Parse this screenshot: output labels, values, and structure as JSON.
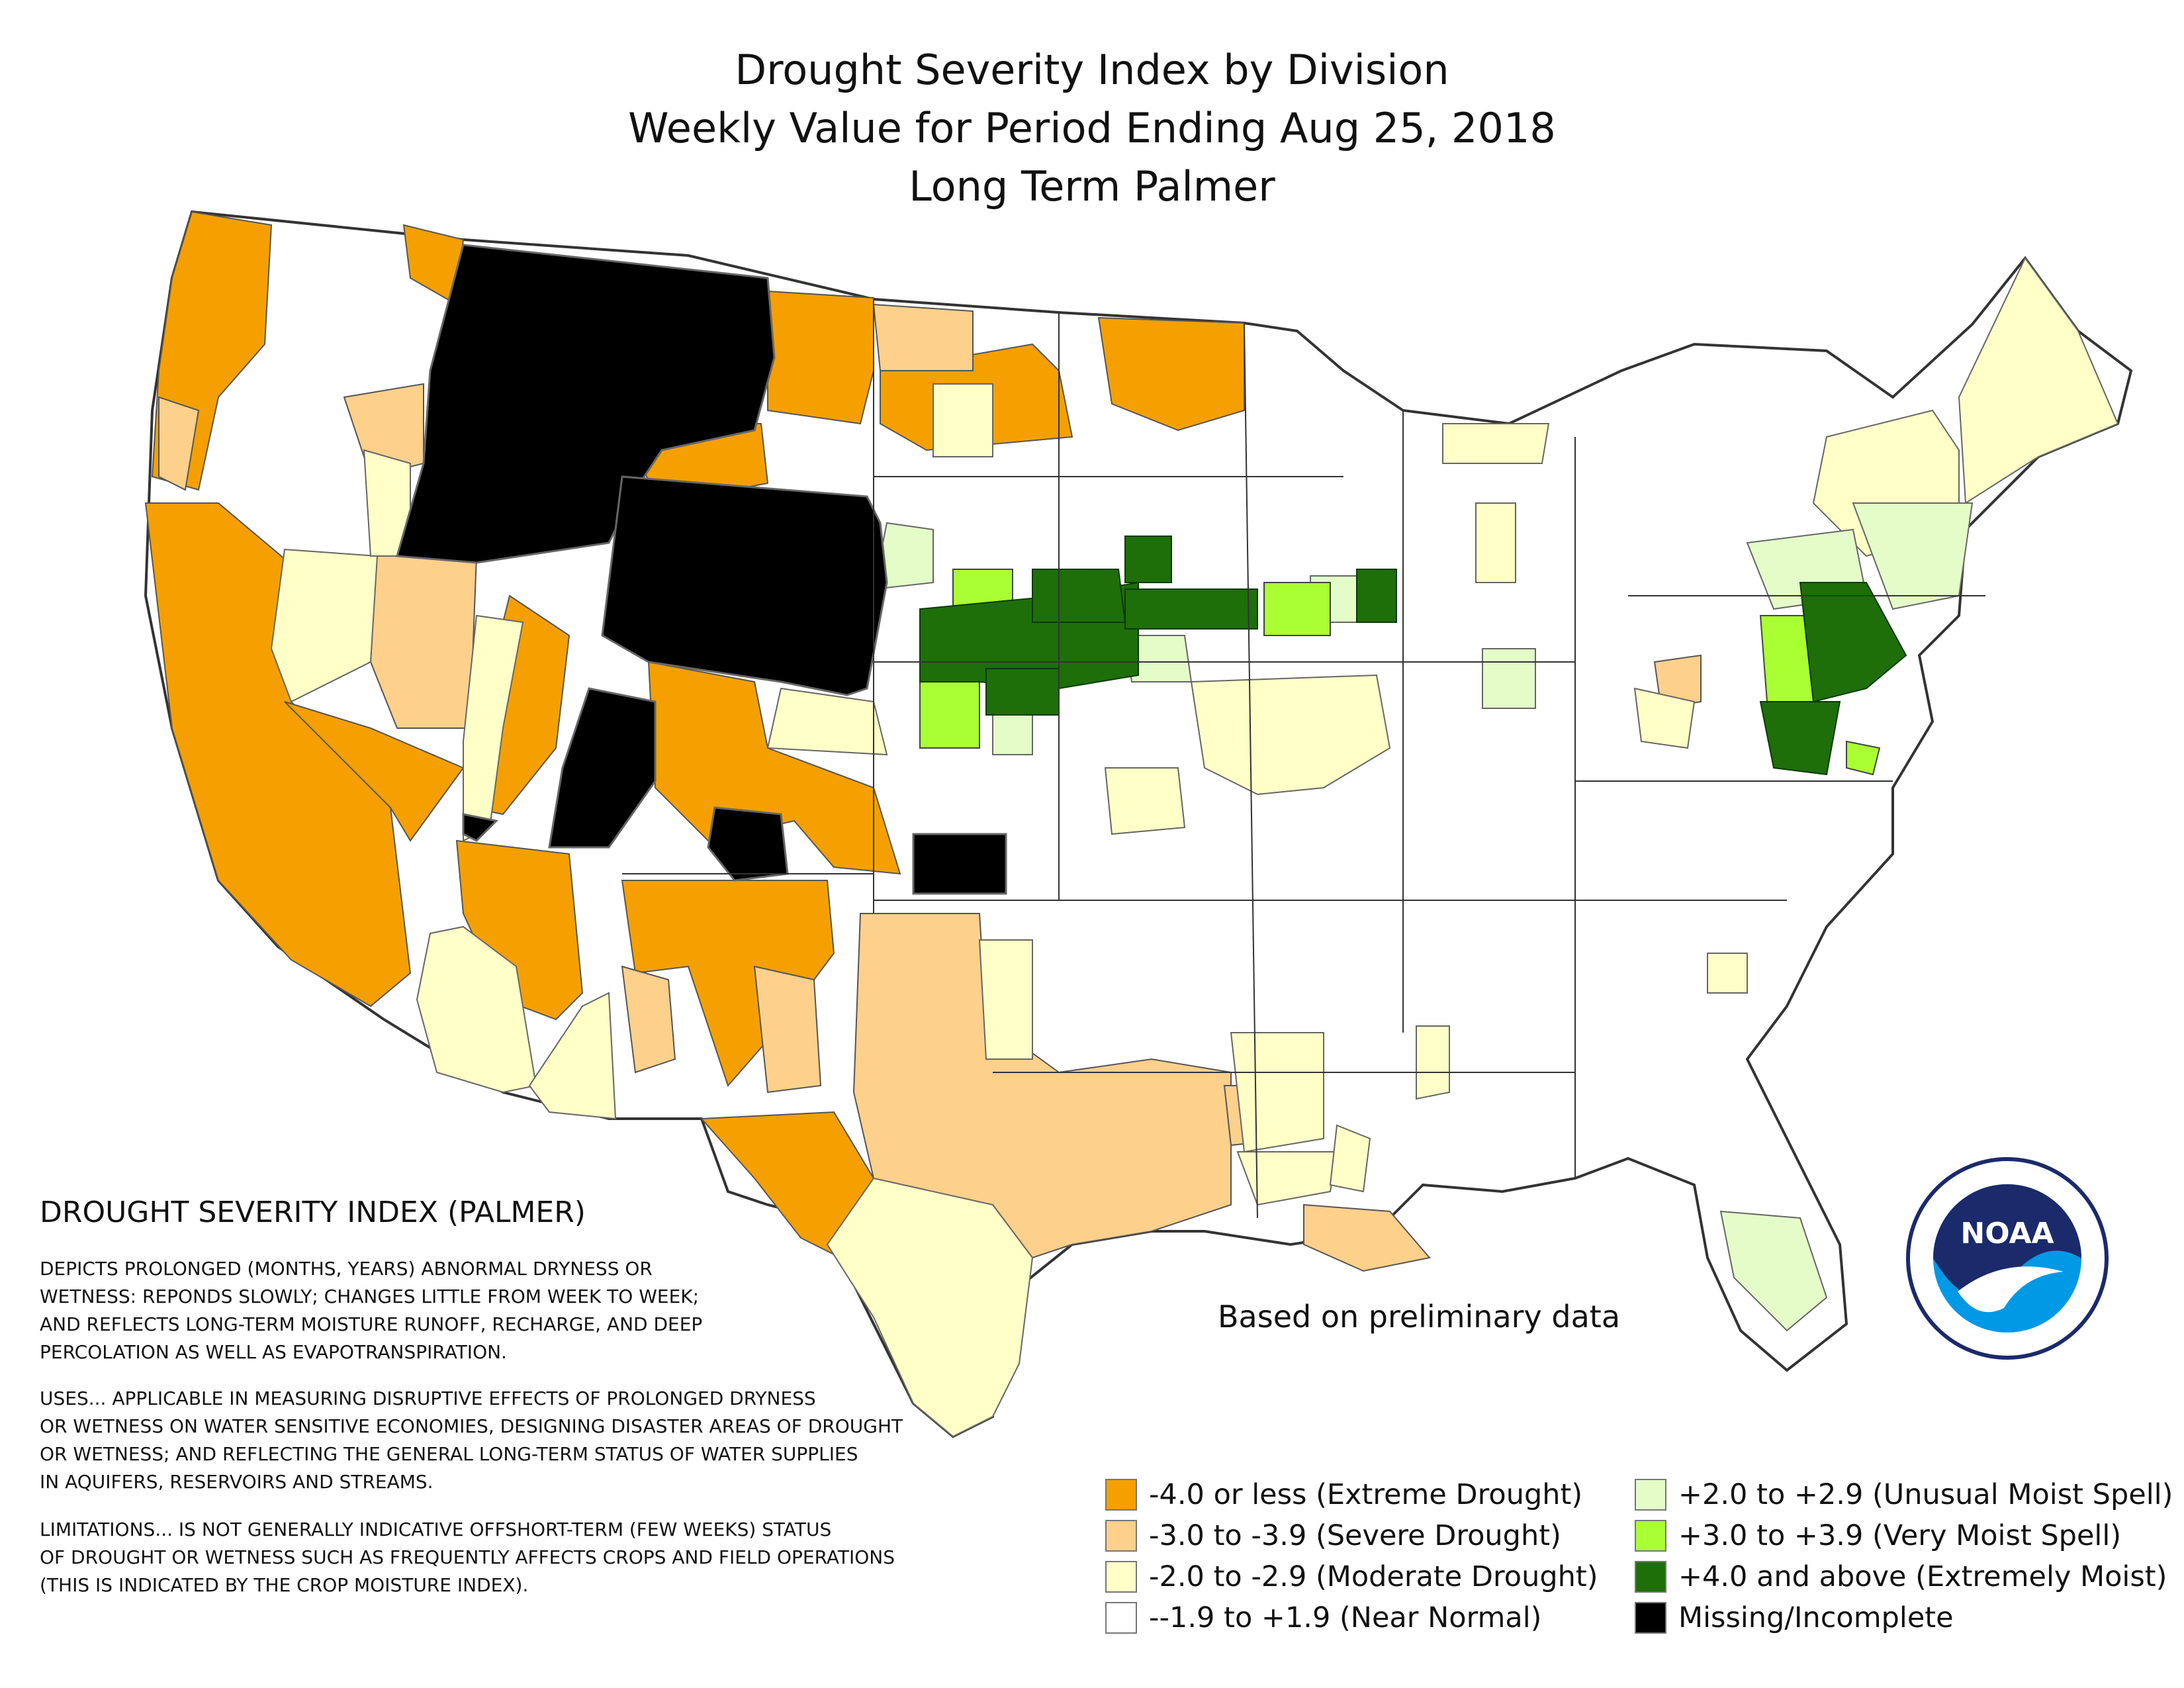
{
  "title": {
    "line1": "Drought Severity Index by Division",
    "line2": "Weekly Value for Period Ending Aug 25, 2018",
    "line3": "Long Term Palmer"
  },
  "note": "Based on preliminary data",
  "explainer": {
    "heading": "DROUGHT SEVERITY INDEX (PALMER)",
    "paragraph1": "DEPICTS PROLONGED (MONTHS, YEARS) ABNORMAL DRYNESS OR\nWETNESS: REPONDS SLOWLY; CHANGES LITTLE FROM WEEK TO WEEK;\nAND REFLECTS LONG-TERM MOISTURE RUNOFF, RECHARGE, AND DEEP\nPERCOLATION AS WELL AS EVAPOTRANSPIRATION.",
    "paragraph2": "USES... APPLICABLE IN MEASURING DISRUPTIVE EFFECTS OF PROLONGED DRYNESS\nOR WETNESS ON WATER SENSITIVE ECONOMIES, DESIGNING DISASTER AREAS OF DROUGHT\nOR WETNESS; AND REFLECTING THE GENERAL LONG-TERM STATUS OF WATER SUPPLIES\nIN AQUIFERS, RESERVOIRS AND STREAMS.",
    "paragraph3": "LIMITATIONS... IS NOT GENERALLY INDICATIVE OFFSHORT-TERM (FEW WEEKS) STATUS\nOF DROUGHT OR WETNESS SUCH AS FREQUENTLY AFFECTS CROPS AND FIELD OPERATIONS\n(THIS IS INDICATED BY THE CROP MOISTURE INDEX)."
  },
  "legend": [
    {
      "label": "-4.0 or less (Extreme Drought)",
      "color": "#f5a000"
    },
    {
      "label": "-3.0 to -3.9 (Severe Drought)",
      "color": "#fdd08b"
    },
    {
      "label": "-2.0 to -2.9 (Moderate Drought)",
      "color": "#ffffc8"
    },
    {
      "label": "--1.9 to +1.9 (Near Normal)",
      "color": "#ffffff"
    },
    {
      "label": "+2.0 to +2.9 (Unusual Moist Spell)",
      "color": "#e4fcc8"
    },
    {
      "label": "+3.0 to +3.9 (Very Moist Spell)",
      "color": "#aaff32"
    },
    {
      "label": "+4.0 and above (Extremely Moist)",
      "color": "#1e6e0a"
    },
    {
      "label": "Missing/Incomplete",
      "color": "#000000"
    }
  ],
  "logo": {
    "text": "NOAA",
    "icon": "noaa-logo-icon"
  }
}
